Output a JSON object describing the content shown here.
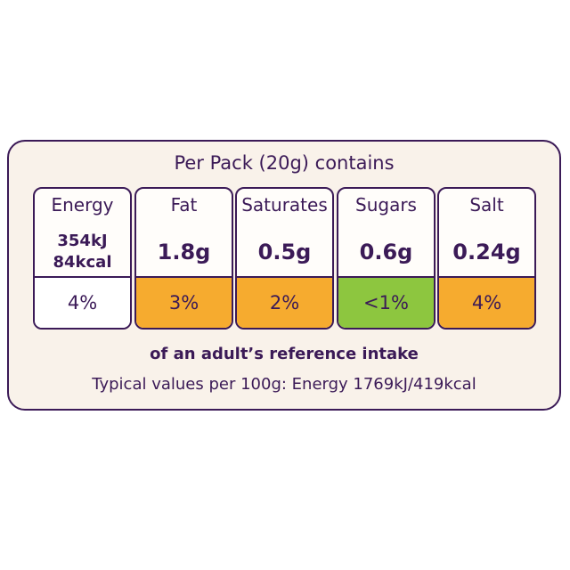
{
  "header": {
    "title": "Per Pack (20g) contains"
  },
  "items": [
    {
      "name": "Energy",
      "amount": [
        "354kJ",
        "84kcal"
      ],
      "percent": "4%",
      "color": "#ffffff"
    },
    {
      "name": "Fat",
      "amount": [
        "1.8g"
      ],
      "percent": "3%",
      "color": "#f6ab2f"
    },
    {
      "name": "Saturates",
      "amount": [
        "0.5g"
      ],
      "percent": "2%",
      "color": "#f6ab2f"
    },
    {
      "name": "Sugars",
      "amount": [
        "0.6g"
      ],
      "percent": "<1%",
      "color": "#8dc63f"
    },
    {
      "name": "Salt",
      "amount": [
        "0.24g"
      ],
      "percent": "4%",
      "color": "#f6ab2f"
    }
  ],
  "footer": {
    "reference": "of an adult’s reference intake",
    "typical": "Typical values per 100g: Energy 1769kJ/419kcal"
  }
}
